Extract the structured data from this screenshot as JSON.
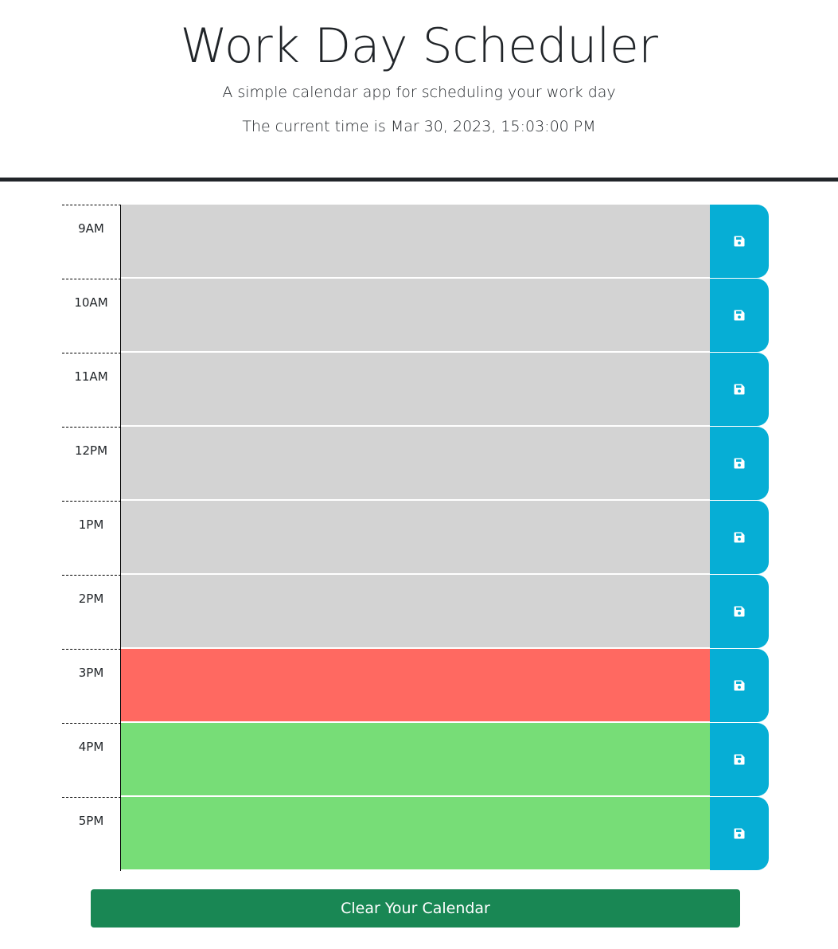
{
  "header": {
    "title": "Work Day Scheduler",
    "subtitle": "A simple calendar app for scheduling your work day",
    "current_time": "The current time is Mar 30, 2023, 15:03:00 PM"
  },
  "colors": {
    "past": "#d3d3d3",
    "present": "#ff6961",
    "future": "#77dd77",
    "save_button": "#06aed5",
    "clear_button": "#198754"
  },
  "time_blocks": [
    {
      "hour": "9AM",
      "state": "past",
      "text": "",
      "save_icon": "floppy-disk-icon"
    },
    {
      "hour": "10AM",
      "state": "past",
      "text": "",
      "save_icon": "floppy-disk-icon"
    },
    {
      "hour": "11AM",
      "state": "past",
      "text": "",
      "save_icon": "floppy-disk-icon"
    },
    {
      "hour": "12PM",
      "state": "past",
      "text": "",
      "save_icon": "floppy-disk-icon"
    },
    {
      "hour": "1PM",
      "state": "past",
      "text": "",
      "save_icon": "floppy-disk-icon"
    },
    {
      "hour": "2PM",
      "state": "past",
      "text": "",
      "save_icon": "floppy-disk-icon"
    },
    {
      "hour": "3PM",
      "state": "present",
      "text": "",
      "save_icon": "floppy-disk-icon"
    },
    {
      "hour": "4PM",
      "state": "future",
      "text": "",
      "save_icon": "floppy-disk-icon"
    },
    {
      "hour": "5PM",
      "state": "future",
      "text": "",
      "save_icon": "floppy-disk-icon"
    }
  ],
  "clear_button": {
    "label": "Clear Your Calendar"
  }
}
